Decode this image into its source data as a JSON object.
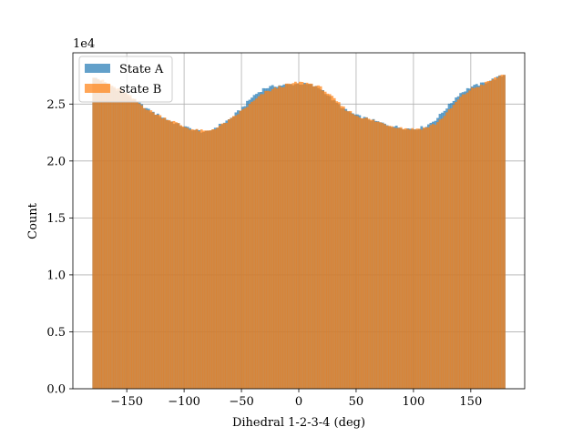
{
  "chart_data": {
    "type": "histogram",
    "title": "",
    "xlabel": "Dihedral 1-2-3-4 (deg)",
    "ylabel": "Count",
    "y_offset_label": "1e4",
    "xlim": [
      -197,
      197
    ],
    "ylim": [
      0,
      29500
    ],
    "grid": true,
    "legend_position": "upper-left",
    "x_ticks": [
      -150,
      -100,
      -50,
      0,
      50,
      100,
      150
    ],
    "x_tick_labels": [
      "−150",
      "−100",
      "−50",
      "0",
      "50",
      "100",
      "150"
    ],
    "y_ticks": [
      0,
      5000,
      10000,
      15000,
      20000,
      25000
    ],
    "y_tick_labels": [
      "0.0",
      "0.5",
      "1.0",
      "1.5",
      "2.0",
      "2.5"
    ],
    "bins": {
      "start": -180,
      "end": 180,
      "count": 180
    },
    "profile_points": {
      "x": [
        -180,
        -165,
        -150,
        -140,
        -130,
        -120,
        -110,
        -100,
        -90,
        -80,
        -70,
        -60,
        -50,
        -40,
        -30,
        -20,
        -10,
        0,
        10,
        20,
        30,
        40,
        50,
        60,
        70,
        80,
        90,
        100,
        110,
        120,
        130,
        140,
        150,
        160,
        170,
        180
      ],
      "state_a": [
        27400,
        26600,
        25800,
        25100,
        24400,
        23900,
        23400,
        23000,
        22700,
        22500,
        23100,
        23700,
        24600,
        25700,
        26400,
        26600,
        26700,
        26800,
        26700,
        26300,
        25300,
        24500,
        24000,
        23700,
        23400,
        23100,
        22900,
        22800,
        23000,
        23700,
        24800,
        25900,
        26500,
        26800,
        27200,
        27600
      ],
      "state_b": [
        27500,
        26700,
        25900,
        25100,
        24400,
        23900,
        23500,
        23000,
        22700,
        22600,
        23000,
        23600,
        24400,
        25200,
        26000,
        26400,
        26700,
        26900,
        26800,
        26400,
        25500,
        24600,
        24000,
        23700,
        23400,
        23100,
        22900,
        22800,
        22900,
        23300,
        24300,
        25500,
        26300,
        26700,
        27200,
        27700
      ]
    },
    "series": [
      {
        "name": "State A",
        "color": "#1f77b4",
        "alpha": 0.7
      },
      {
        "name": "state B",
        "color": "#ff7f0e",
        "alpha": 0.7
      }
    ]
  }
}
